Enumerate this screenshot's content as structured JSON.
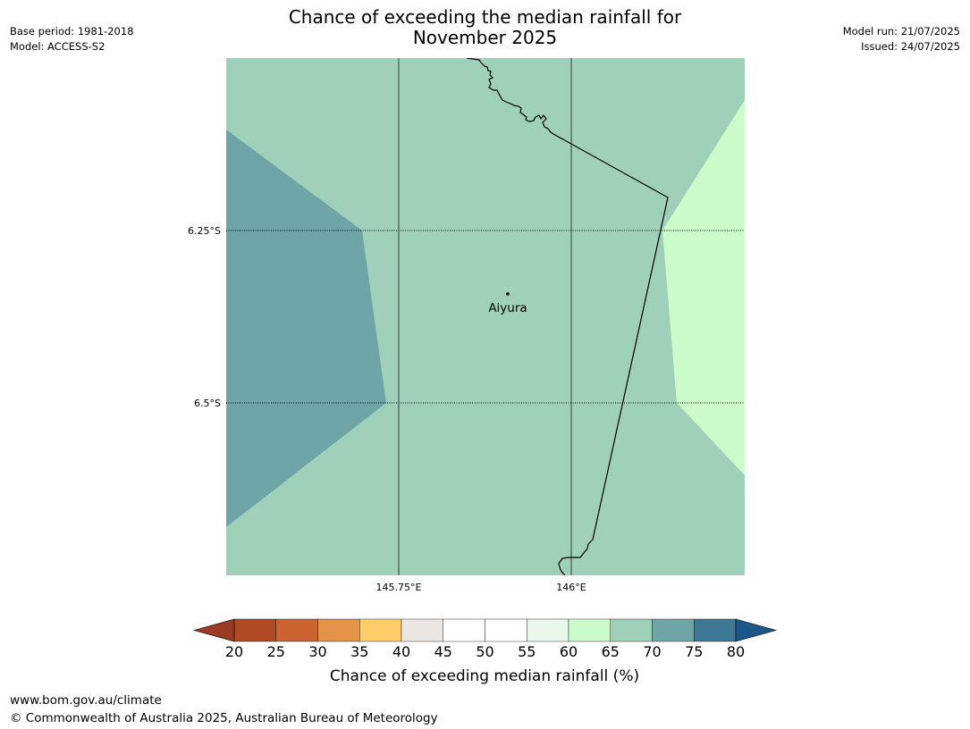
{
  "title": {
    "line1": "Chance of exceeding the median rainfall for",
    "line2": "November 2025"
  },
  "meta_left": {
    "base_period": "Base period: 1981-2018",
    "model": "Model: ACCESS-S2"
  },
  "meta_right": {
    "model_run": "Model run: 21/07/2025",
    "issued": "Issued: 24/07/2025"
  },
  "map": {
    "lat_ticks": [
      "6.25°S",
      "6.5°S"
    ],
    "lon_ticks": [
      "145.75°E",
      "146°E"
    ],
    "place_label": "Aiyura",
    "zone_colors": {
      "band_60_65": "#ccfcca",
      "band_65_70": "#9fd1ba",
      "band_70_75": "#70a5a8"
    }
  },
  "colorbar": {
    "title": "Chance of exceeding median rainfall (%)",
    "labels": [
      "20",
      "25",
      "30",
      "35",
      "40",
      "45",
      "50",
      "55",
      "60",
      "65",
      "70",
      "75",
      "80"
    ],
    "colors": [
      "#b04a24",
      "#cc6431",
      "#e39446",
      "#fecd67",
      "#ede7e3",
      "#ffffff",
      "#ffffff",
      "#eaf7eb",
      "#ccfcca",
      "#9fd1ba",
      "#70a5a8",
      "#3f7895"
    ],
    "under_color": "#9b3b23",
    "over_color": "#1d5689"
  },
  "footer": {
    "url": "www.bom.gov.au/climate",
    "copyright": "© Commonwealth of Australia 2025, Australian Bureau of Meteorology"
  }
}
